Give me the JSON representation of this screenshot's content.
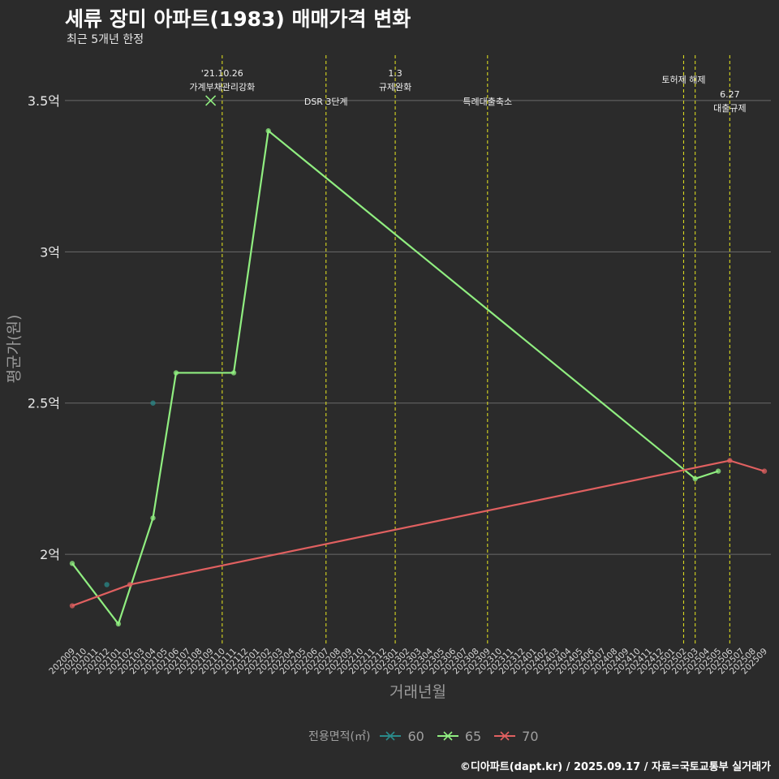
{
  "title": "세류 장미 아파트(1983) 매매가격 변화",
  "subtitle": "최근 5개년 한정",
  "caption": "©디아파트(dapt.kr) / 2025.09.17 / 자료=국토교통부 실거래가",
  "chart_data": {
    "type": "line",
    "xlabel": "거래년월",
    "ylabel": "평균가(원)",
    "x_ticks": [
      "202009",
      "202010",
      "202011",
      "202012",
      "202101",
      "202102",
      "202103",
      "202104",
      "202105",
      "202106",
      "202107",
      "202108",
      "202109",
      "202110",
      "202111",
      "202112",
      "202201",
      "202202",
      "202203",
      "202204",
      "202205",
      "202206",
      "202207",
      "202208",
      "202209",
      "202210",
      "202211",
      "202212",
      "202301",
      "202302",
      "202303",
      "202304",
      "202305",
      "202306",
      "202307",
      "202308",
      "202309",
      "202310",
      "202311",
      "202312",
      "202401",
      "202402",
      "202403",
      "202404",
      "202405",
      "202406",
      "202407",
      "202408",
      "202409",
      "202410",
      "202411",
      "202412",
      "202501",
      "202502",
      "202503",
      "202504",
      "202505",
      "202506",
      "202507",
      "202508",
      "202509"
    ],
    "y_ticks": [
      {
        "value": 2.0,
        "label": "2억"
      },
      {
        "value": 2.5,
        "label": "2.5억"
      },
      {
        "value": 3.0,
        "label": "3억"
      },
      {
        "value": 3.5,
        "label": "3.5억"
      }
    ],
    "ylim": [
      1.7,
      3.65
    ],
    "legend_title": "전용면적(㎡)",
    "series": [
      {
        "name": "60",
        "color": "#2a8a8a",
        "line": false,
        "points": [
          {
            "x": "202012",
            "y": 1.9
          },
          {
            "x": "202104",
            "y": 2.5
          }
        ]
      },
      {
        "name": "65",
        "color": "#90ee80",
        "line": true,
        "points": [
          {
            "x": "202009",
            "y": 1.97
          },
          {
            "x": "202101",
            "y": 1.77
          },
          {
            "x": "202104",
            "y": 2.12
          },
          {
            "x": "202106",
            "y": 2.6
          },
          {
            "x": "202111",
            "y": 2.6
          },
          {
            "x": "202202",
            "y": 3.4
          },
          {
            "x": "202503",
            "y": 2.25
          },
          {
            "x": "202505",
            "y": 2.275
          }
        ]
      },
      {
        "name": "70",
        "color": "#e06060",
        "line": true,
        "points": [
          {
            "x": "202009",
            "y": 1.83
          },
          {
            "x": "202102",
            "y": 1.9
          },
          {
            "x": "202506",
            "y": 2.31
          },
          {
            "x": "202509",
            "y": 2.275
          }
        ]
      }
    ],
    "extra_marker": {
      "x": "202109",
      "y": 3.5,
      "series": "65",
      "shape": "x"
    },
    "events": [
      {
        "x": "202110",
        "lines": [
          "'21.10.26",
          "가계부채관리강화"
        ],
        "level": "high"
      },
      {
        "x": "202207",
        "lines": [
          "DSR 3단계"
        ],
        "level": "low"
      },
      {
        "x": "202301",
        "lines": [
          "1.3",
          "규제완화"
        ],
        "level": "high"
      },
      {
        "x": "202309",
        "lines": [
          "특례대출축소"
        ],
        "level": "low"
      },
      {
        "x": "202502",
        "lines": [
          "토허제 해제"
        ],
        "level": "top"
      },
      {
        "x": "202503",
        "lines": [],
        "level": "none"
      },
      {
        "x": "202506",
        "lines": [
          "6.27",
          "대출규제"
        ],
        "level": "mid"
      }
    ]
  }
}
